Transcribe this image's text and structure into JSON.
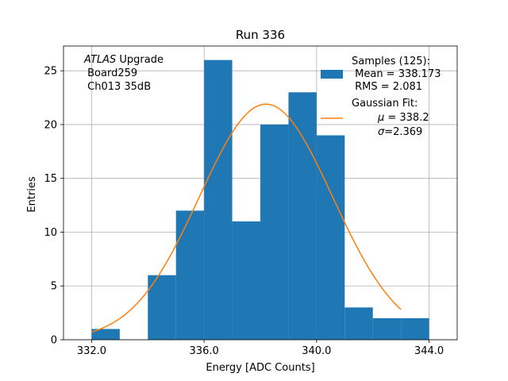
{
  "chart_data": {
    "type": "bar",
    "title": "Run 336",
    "xlabel": "Energy [ADC Counts]",
    "ylabel": "Entries",
    "xlim": [
      331.0,
      345.0
    ],
    "ylim": [
      0,
      27.3
    ],
    "grid": true,
    "xticks": [
      332.0,
      336.0,
      340.0,
      344.0
    ],
    "xtick_labels": [
      "332.0",
      "336.0",
      "340.0",
      "344.0"
    ],
    "yticks": [
      0,
      5,
      10,
      15,
      20,
      25
    ],
    "ytick_labels": [
      "0",
      "5",
      "10",
      "15",
      "20",
      "25"
    ],
    "bin_edges": [
      332.0,
      333.0,
      334.0,
      335.0,
      336.0,
      337.0,
      338.0,
      339.0,
      340.0,
      341.0,
      342.0,
      343.0,
      344.0
    ],
    "counts": [
      1,
      0,
      6,
      12,
      26,
      11,
      20,
      23,
      19,
      3,
      2,
      2
    ],
    "bar_color": "#1f77b4",
    "fit": {
      "name": "Gaussian Fit",
      "mu": 338.2,
      "sigma": 2.369,
      "amplitude": 21.9,
      "x_range": [
        332.0,
        343.0
      ],
      "color": "#ff7f0e"
    },
    "annotation": {
      "line1_italic": "ATLAS",
      "line1_rest": " Upgrade",
      "line2": " Board259",
      "line3": " Ch013 35dB"
    },
    "legend": {
      "position": "top-right",
      "samples": {
        "line1": "Samples (125):",
        "line2": " Mean = 338.173",
        "line3": " RMS = 2.081"
      },
      "gaussian": {
        "line1": "Gaussian Fit:",
        "line2_sym": "μ",
        "line2_rest": " = 338.2",
        "line3_sym": "σ",
        "line3_rest": "=2.369"
      }
    }
  }
}
